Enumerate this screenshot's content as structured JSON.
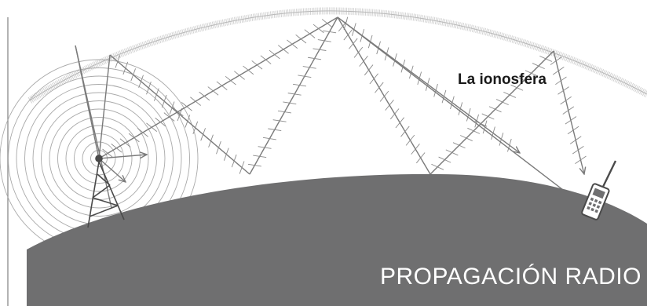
{
  "diagram": {
    "ionosphere_label": "La ionosfera",
    "title": "PROPAGACIÓN RADIO",
    "colors": {
      "earth": "#6f6f70",
      "ray": "#7a7a7a",
      "wave_rings": "#a9a9a9",
      "ionosphere_band": "#c8c8c8",
      "title_text": "#ffffff",
      "label_text": "#1a1a1a"
    },
    "icons": [
      "radio-tower-icon",
      "walkie-talkie-icon"
    ]
  }
}
